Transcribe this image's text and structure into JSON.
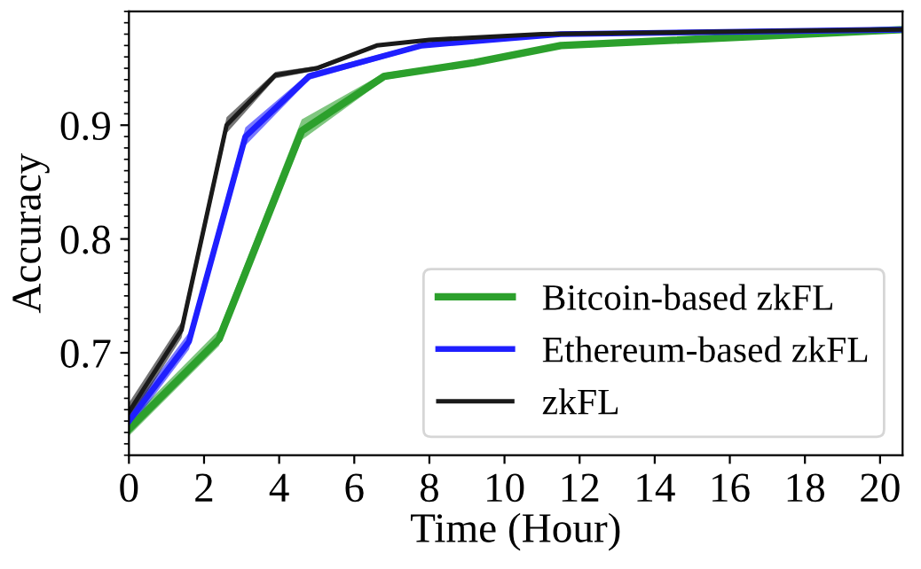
{
  "chart_data": {
    "type": "line",
    "xlabel": "Time (Hour)",
    "ylabel": "Accuracy",
    "xlim": [
      0,
      20.6
    ],
    "xticks": [
      0,
      2,
      4,
      6,
      8,
      10,
      12,
      14,
      16,
      18,
      20
    ],
    "ylim": [
      0.61,
      1.0
    ],
    "yticks": [
      0.7,
      0.8,
      0.9
    ],
    "grid": false,
    "legend": "bottom right",
    "marker": "none",
    "line_style": "solid",
    "series": [
      {
        "name": "Bitcoin-based zkFL",
        "color": "#2ca02c",
        "x": [
          0,
          2.4,
          4.6,
          6.8,
          9.2,
          11.5,
          20.6
        ],
        "values": [
          0.633,
          0.712,
          0.895,
          0.943,
          0.955,
          0.97,
          0.984
        ],
        "lower": [
          0.627,
          0.706,
          0.887,
          0.94,
          0.953,
          0.968,
          0.983
        ],
        "upper": [
          0.64,
          0.72,
          0.905,
          0.946,
          0.957,
          0.972,
          0.985
        ]
      },
      {
        "name": "Ethereum-based zkFL",
        "color": "#1f1fff",
        "x": [
          0,
          1.6,
          3.1,
          4.8,
          7.8,
          11.5,
          20.6
        ],
        "values": [
          0.64,
          0.71,
          0.89,
          0.943,
          0.97,
          0.98,
          0.984
        ],
        "lower": [
          0.633,
          0.703,
          0.882,
          0.94,
          0.968,
          0.979,
          0.983
        ],
        "upper": [
          0.647,
          0.718,
          0.898,
          0.946,
          0.972,
          0.981,
          0.985
        ]
      },
      {
        "name": "zkFL",
        "color": "#1a1a1a",
        "x": [
          0,
          1.4,
          2.6,
          3.9,
          5.0,
          6.6,
          8.0,
          11.0,
          20.6
        ],
        "values": [
          0.648,
          0.72,
          0.9,
          0.944,
          0.95,
          0.97,
          0.975,
          0.98,
          0.984
        ],
        "lower": [
          0.64,
          0.713,
          0.893,
          0.941,
          0.948,
          0.969,
          0.974,
          0.979,
          0.983
        ],
        "upper": [
          0.656,
          0.727,
          0.907,
          0.947,
          0.952,
          0.971,
          0.976,
          0.981,
          0.985
        ]
      }
    ]
  }
}
